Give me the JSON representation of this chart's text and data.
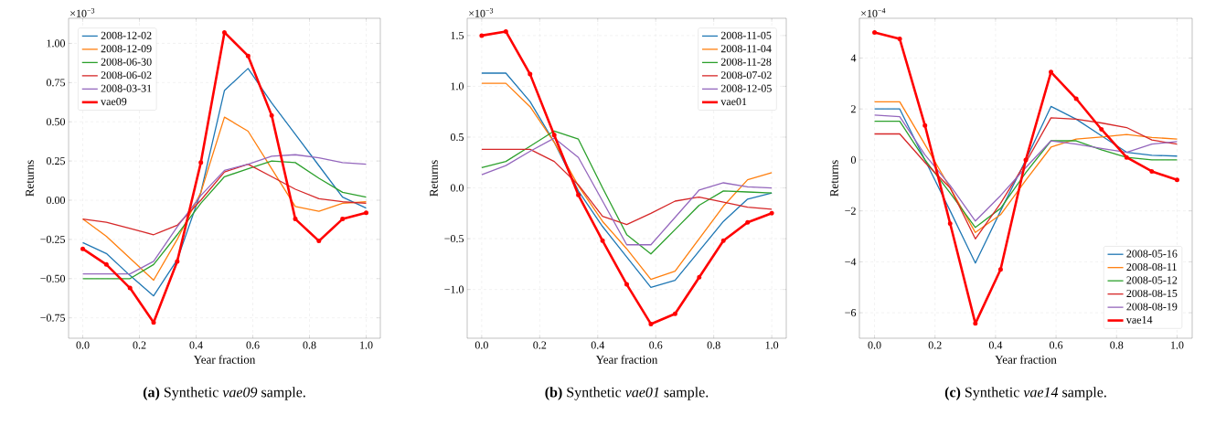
{
  "chart_data": [
    {
      "type": "line",
      "xlabel": "Year fraction",
      "ylabel": "Returns",
      "grid": true,
      "legend": "top left",
      "annotations": [
        "×10$^{−3}$",
        "**(a)** Synthetic *vae09* sample."
      ],
      "x": [
        0,
        0.0833,
        0.1667,
        0.25,
        0.3333,
        0.4167,
        0.5,
        0.5833,
        0.6667,
        0.75,
        0.8333,
        0.9167,
        1
      ],
      "xlim": [
        -0.05,
        1.05
      ],
      "ylim": [
        -0.88,
        1.16
      ],
      "xticks": [
        {
          "value": 0,
          "label": "0.0"
        },
        {
          "value": 0.2,
          "label": "0.2"
        },
        {
          "value": 0.4,
          "label": "0.4"
        },
        {
          "value": 0.6,
          "label": "0.6"
        },
        {
          "value": 0.8,
          "label": "0.8"
        },
        {
          "value": 1,
          "label": "1.0"
        }
      ],
      "yticks": [
        {
          "value": -0.75,
          "label": "−0.75"
        },
        {
          "value": -0.5,
          "label": "−0.50"
        },
        {
          "value": -0.25,
          "label": "−0.25"
        },
        {
          "value": 0,
          "label": "0.00"
        },
        {
          "value": 0.25,
          "label": "0.25"
        },
        {
          "value": 0.5,
          "label": "0.50"
        },
        {
          "value": 0.75,
          "label": "0.75"
        },
        {
          "value": 1.0,
          "label": "1.00"
        }
      ],
      "series": [
        {
          "name": "2008-12-02",
          "color": "#1f77b4",
          "values": [
            -0.27,
            -0.34,
            -0.48,
            -0.61,
            -0.38,
            0.05,
            0.7,
            0.84,
            0.62,
            0.42,
            0.22,
            0.02,
            -0.05
          ]
        },
        {
          "name": "2008-12-09",
          "color": "#ff7f0e",
          "values": [
            -0.12,
            -0.23,
            -0.37,
            -0.51,
            -0.25,
            0.05,
            0.53,
            0.44,
            0.2,
            -0.04,
            -0.07,
            -0.02,
            -0.01
          ]
        },
        {
          "name": "2008-06-30",
          "color": "#2ca02c",
          "values": [
            -0.5,
            -0.5,
            -0.5,
            -0.41,
            -0.22,
            -0.02,
            0.15,
            0.2,
            0.25,
            0.24,
            0.14,
            0.05,
            0.02
          ]
        },
        {
          "name": "2008-06-02",
          "color": "#d62728",
          "values": [
            -0.12,
            -0.14,
            -0.18,
            -0.22,
            -0.16,
            0.0,
            0.18,
            0.23,
            0.15,
            0.07,
            0.01,
            -0.01,
            -0.02
          ]
        },
        {
          "name": "2008-03-31",
          "color": "#9467bd",
          "values": [
            -0.47,
            -0.47,
            -0.47,
            -0.39,
            -0.17,
            0.03,
            0.19,
            0.23,
            0.28,
            0.29,
            0.27,
            0.24,
            0.23
          ]
        },
        {
          "name": "vae09",
          "color": "#ff0000",
          "marker": "circle",
          "values": [
            -0.31,
            -0.41,
            -0.56,
            -0.78,
            -0.39,
            0.24,
            1.07,
            0.92,
            0.54,
            -0.12,
            -0.26,
            -0.12,
            -0.08
          ]
        }
      ]
    },
    {
      "type": "line",
      "xlabel": "Year fraction",
      "ylabel": "Returns",
      "grid": true,
      "legend": "top right",
      "annotations": [
        "×10$^{−3}$",
        "**(b)** Synthetic *vae01* sample."
      ],
      "x": [
        0,
        0.0833,
        0.1667,
        0.25,
        0.3333,
        0.4167,
        0.5,
        0.5833,
        0.6667,
        0.75,
        0.8333,
        0.9167,
        1
      ],
      "xlim": [
        -0.05,
        1.05
      ],
      "ylim": [
        -1.48,
        1.67
      ],
      "xticks": [
        {
          "value": 0,
          "label": "0.0"
        },
        {
          "value": 0.2,
          "label": "0.2"
        },
        {
          "value": 0.4,
          "label": "0.4"
        },
        {
          "value": 0.6,
          "label": "0.6"
        },
        {
          "value": 0.8,
          "label": "0.8"
        },
        {
          "value": 1,
          "label": "1.0"
        }
      ],
      "yticks": [
        {
          "value": -1.0,
          "label": "−1.0"
        },
        {
          "value": -0.5,
          "label": "−0.5"
        },
        {
          "value": 0,
          "label": "0.0"
        },
        {
          "value": 0.5,
          "label": "0.5"
        },
        {
          "value": 1.0,
          "label": "1.0"
        },
        {
          "value": 1.5,
          "label": "1.5"
        }
      ],
      "series": [
        {
          "name": "2008-11-05",
          "color": "#1f77b4",
          "values": [
            1.13,
            1.13,
            0.85,
            0.45,
            -0.03,
            -0.38,
            -0.68,
            -0.98,
            -0.91,
            -0.62,
            -0.33,
            -0.11,
            -0.05
          ]
        },
        {
          "name": "2008-11-04",
          "color": "#ff7f0e",
          "values": [
            1.03,
            1.03,
            0.8,
            0.45,
            0.02,
            -0.33,
            -0.6,
            -0.9,
            -0.82,
            -0.5,
            -0.18,
            0.08,
            0.15
          ]
        },
        {
          "name": "2008-11-28",
          "color": "#2ca02c",
          "values": [
            0.2,
            0.26,
            0.41,
            0.56,
            0.48,
            0.0,
            -0.46,
            -0.65,
            -0.41,
            -0.17,
            -0.03,
            -0.04,
            -0.05
          ]
        },
        {
          "name": "2008-07-02",
          "color": "#d62728",
          "values": [
            0.38,
            0.38,
            0.38,
            0.26,
            0.03,
            -0.28,
            -0.36,
            -0.25,
            -0.13,
            -0.09,
            -0.14,
            -0.19,
            -0.21
          ]
        },
        {
          "name": "2008-12-05",
          "color": "#9467bd",
          "values": [
            0.13,
            0.22,
            0.36,
            0.49,
            0.3,
            -0.13,
            -0.56,
            -0.56,
            -0.29,
            -0.02,
            0.05,
            0.01,
            0.0
          ]
        },
        {
          "name": "vae01",
          "color": "#ff0000",
          "marker": "circle",
          "values": [
            1.5,
            1.54,
            1.12,
            0.52,
            -0.07,
            -0.52,
            -0.95,
            -1.34,
            -1.24,
            -0.88,
            -0.52,
            -0.34,
            -0.25
          ]
        }
      ]
    },
    {
      "type": "line",
      "xlabel": "Year fraction",
      "ylabel": "Returns",
      "grid": true,
      "legend": "bottom right",
      "annotations": [
        "×10$^{−4}$",
        "**(c)** Synthetic *vae14* sample."
      ],
      "x": [
        0,
        0.0833,
        0.1667,
        0.25,
        0.3333,
        0.4167,
        0.5,
        0.5833,
        0.6667,
        0.75,
        0.8333,
        0.9167,
        1
      ],
      "xlim": [
        -0.05,
        1.05
      ],
      "ylim": [
        -7.0,
        5.56
      ],
      "xticks": [
        {
          "value": 0,
          "label": "0.0"
        },
        {
          "value": 0.2,
          "label": "0.2"
        },
        {
          "value": 0.4,
          "label": "0.4"
        },
        {
          "value": 0.6,
          "label": "0.6"
        },
        {
          "value": 0.8,
          "label": "0.8"
        },
        {
          "value": 1,
          "label": "1.0"
        }
      ],
      "yticks": [
        {
          "value": -6,
          "label": "−6"
        },
        {
          "value": -4,
          "label": "−4"
        },
        {
          "value": -2,
          "label": "−2"
        },
        0,
        2,
        4
      ],
      "series": [
        {
          "name": "2008-05-16",
          "color": "#1f77b4",
          "values": [
            2.0,
            2.0,
            0.0,
            -2.0,
            -4.05,
            -2.0,
            0.0,
            2.1,
            1.6,
            0.95,
            0.3,
            0.18,
            0.15
          ]
        },
        {
          "name": "2008-08-11",
          "color": "#ff7f0e",
          "values": [
            2.28,
            2.28,
            0.6,
            -1.1,
            -2.85,
            -2.15,
            -0.8,
            0.5,
            0.82,
            0.9,
            1.0,
            0.88,
            0.82
          ]
        },
        {
          "name": "2008-05-12",
          "color": "#2ca02c",
          "values": [
            1.52,
            1.52,
            0.0,
            -1.3,
            -2.65,
            -1.9,
            -0.5,
            0.75,
            0.75,
            0.4,
            0.1,
            0.0,
            0.0
          ]
        },
        {
          "name": "2008-08-15",
          "color": "#d62728",
          "values": [
            1.02,
            1.02,
            -0.1,
            -1.1,
            -3.1,
            -1.7,
            -0.1,
            1.65,
            1.6,
            1.45,
            1.27,
            0.78,
            0.62
          ]
        },
        {
          "name": "2008-08-19",
          "color": "#9467bd",
          "values": [
            1.76,
            1.7,
            0.2,
            -1.0,
            -2.4,
            -1.4,
            -0.3,
            0.75,
            0.62,
            0.45,
            0.3,
            0.62,
            0.72
          ]
        },
        {
          "name": "vae14",
          "color": "#ff0000",
          "marker": "circle",
          "values": [
            5.0,
            4.75,
            1.35,
            -2.5,
            -6.42,
            -4.3,
            0.0,
            3.45,
            2.4,
            1.2,
            0.1,
            -0.45,
            -0.78
          ]
        }
      ]
    }
  ]
}
